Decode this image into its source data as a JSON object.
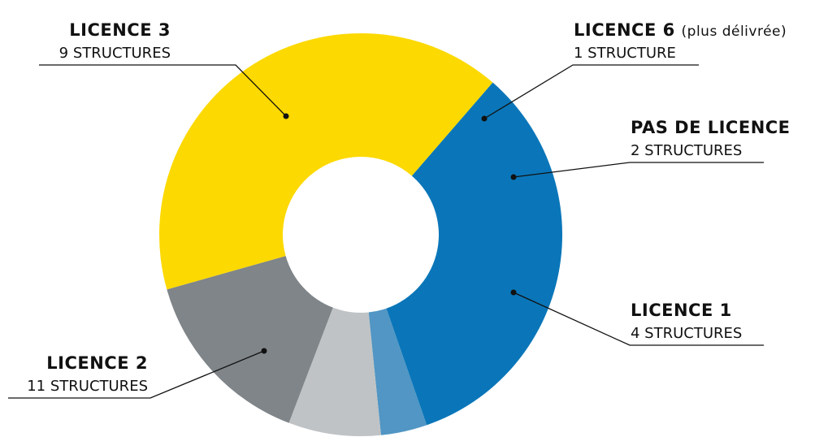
{
  "chart_data": {
    "type": "donut",
    "categories": [
      "LICENCE 3",
      "LICENCE 6",
      "PAS DE LICENCE",
      "LICENCE 1",
      "LICENCE 2"
    ],
    "values": [
      9,
      1,
      2,
      4,
      11
    ],
    "value_labels": [
      "9 STRUCTURES",
      "1 STRUCTURE",
      "2 STRUCTURES",
      "4 STRUCTURES",
      "11 STRUCTURES"
    ],
    "colors": [
      "#0a76b9",
      "#5196c4",
      "#bfc3c5",
      "#7f8589",
      "#fcd900"
    ],
    "annotations": [
      {
        "category": "LICENCE 6",
        "text": "(plus délivrée)"
      }
    ]
  }
}
